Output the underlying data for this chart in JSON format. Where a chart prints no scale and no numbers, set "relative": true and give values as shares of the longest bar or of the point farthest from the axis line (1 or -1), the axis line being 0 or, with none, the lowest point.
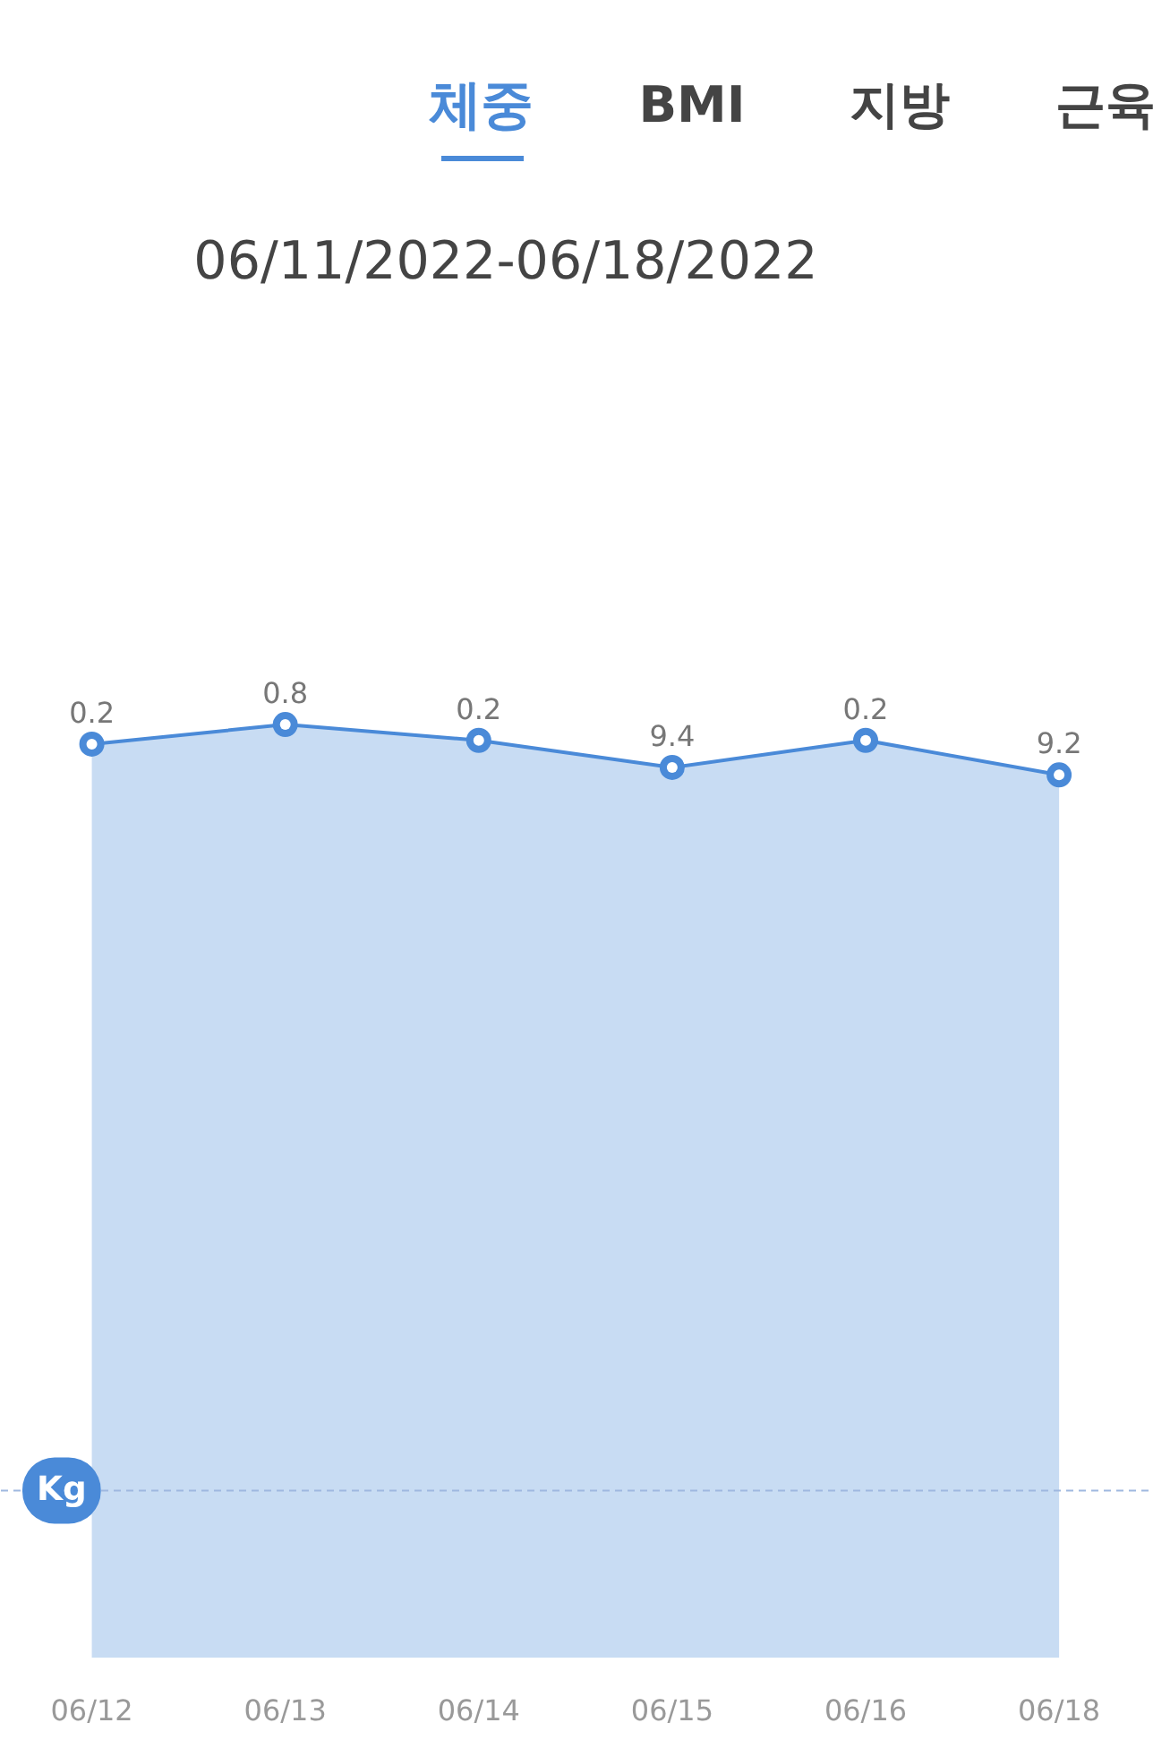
{
  "chart_data": {
    "type": "area",
    "title": "06/11/2022-06/18/2022",
    "annotations": [
      "체중",
      "BMI",
      "지방",
      "근육"
    ],
    "categories": [
      "06/12",
      "06/13",
      "06/14",
      "06/15",
      "06/16",
      "06/18"
    ],
    "relative": true,
    "series": [
      {
        "color": "#4a8ad8",
        "values": [
          0.979,
          1.0,
          0.983,
          0.954,
          0.983,
          0.946
        ]
      }
    ],
    "value_labels": [
      "0.2",
      "0.8",
      "0.2",
      "9.4",
      "0.2",
      "9.2"
    ],
    "marker": "circle",
    "ref_lines": [
      {
        "axis": "y",
        "value": 0.179,
        "label": "Kg",
        "color": "#9fb8e0",
        "line_style": "dashed"
      }
    ],
    "grid": false
  }
}
